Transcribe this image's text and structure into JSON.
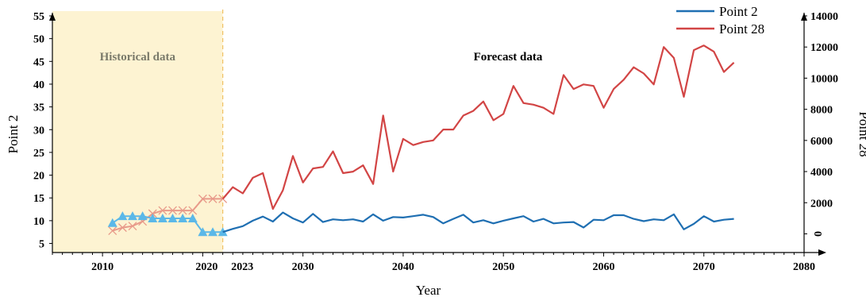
{
  "chart_data": {
    "type": "line",
    "xlabel": "Year",
    "ylabel_left": "Point 2",
    "ylabel_right": "Point 28",
    "xlim": [
      2005,
      2080
    ],
    "ylim_left": [
      3,
      55
    ],
    "ylim_right": [
      -1200,
      14000
    ],
    "x_ticks": [
      2010,
      2020,
      2023,
      2030,
      2040,
      2050,
      2060,
      2070,
      2080
    ],
    "x_tick_labels": [
      "2010",
      "2020",
      "2023",
      "2030",
      "2040",
      "2050",
      "2060",
      "2070",
      "2080"
    ],
    "y_left_ticks": [
      5,
      10,
      15,
      20,
      25,
      30,
      35,
      40,
      45,
      50,
      55
    ],
    "y_left_tick_labels": [
      "5",
      "10",
      "15",
      "20",
      "25",
      "30",
      "35",
      "40",
      "45",
      "50",
      "55"
    ],
    "y_right_ticks": [
      0,
      2000,
      4000,
      6000,
      8000,
      10000,
      12000,
      14000
    ],
    "y_right_tick_labels": [
      "0",
      "2000",
      "4000",
      "6000",
      "8000",
      "10000",
      "12000",
      "14000"
    ],
    "region_historical": {
      "label": "Historical data",
      "x_start": 2005,
      "x_end": 2022,
      "color": "#fdf3d2",
      "border_color": "#f0c060"
    },
    "region_forecast": {
      "label": "Forecast data"
    },
    "legend": {
      "position": "top-right",
      "entries": [
        "Point 2",
        "Point 28"
      ]
    },
    "colors": {
      "point2": "#1f6fb2",
      "point28": "#d24545",
      "hist_point2": "#5bb8e8",
      "hist_point28": "#e89a8a"
    },
    "historical": {
      "point2": {
        "name": "Point 2",
        "axis": "left",
        "x": [
          2011,
          2012,
          2013,
          2014,
          2015,
          2016,
          2017,
          2018,
          2019,
          2020,
          2021,
          2022
        ],
        "y": [
          9.5,
          11,
          11,
          11,
          10.5,
          10.5,
          10.5,
          10.5,
          10.5,
          7.5,
          7.5,
          7.5
        ]
      },
      "point28": {
        "name": "Point 28",
        "axis": "right",
        "x": [
          2011,
          2012,
          2013,
          2014,
          2015,
          2016,
          2017,
          2018,
          2019,
          2020,
          2021,
          2022
        ],
        "y": [
          200,
          400,
          500,
          800,
          1300,
          1500,
          1500,
          1500,
          1500,
          2250,
          2250,
          2250
        ]
      }
    },
    "series": [
      {
        "name": "Point 2",
        "axis": "left",
        "x": [
          2022,
          2023,
          2024,
          2025,
          2026,
          2027,
          2028,
          2029,
          2030,
          2031,
          2032,
          2033,
          2034,
          2035,
          2036,
          2037,
          2038,
          2039,
          2040,
          2041,
          2042,
          2043,
          2044,
          2045,
          2046,
          2047,
          2048,
          2049,
          2050,
          2051,
          2052,
          2053,
          2054,
          2055,
          2056,
          2057,
          2058,
          2059,
          2060,
          2061,
          2062,
          2063,
          2064,
          2065,
          2066,
          2067,
          2068,
          2069,
          2070,
          2071,
          2072,
          2073
        ],
        "y": [
          7.5,
          8.2,
          8.8,
          10.0,
          10.9,
          9.8,
          11.8,
          10.5,
          9.6,
          11.5,
          9.7,
          10.3,
          10.1,
          10.3,
          9.8,
          11.4,
          10.0,
          10.8,
          10.7,
          11.0,
          11.3,
          10.8,
          9.4,
          10.4,
          11.3,
          9.6,
          10.1,
          9.4,
          10.0,
          10.5,
          11.0,
          9.8,
          10.4,
          9.4,
          9.6,
          9.7,
          8.5,
          10.2,
          10.1,
          11.2,
          11.2,
          10.4,
          9.9,
          10.3,
          10.1,
          11.4,
          8.1,
          9.3,
          11.0,
          9.8,
          10.2,
          10.4
        ]
      },
      {
        "name": "Point 28",
        "axis": "right",
        "x": [
          2022,
          2023,
          2024,
          2025,
          2026,
          2027,
          2028,
          2029,
          2030,
          2031,
          2032,
          2033,
          2034,
          2035,
          2036,
          2037,
          2038,
          2039,
          2040,
          2041,
          2042,
          2043,
          2044,
          2045,
          2046,
          2047,
          2048,
          2049,
          2050,
          2051,
          2052,
          2053,
          2054,
          2055,
          2056,
          2057,
          2058,
          2059,
          2060,
          2061,
          2062,
          2063,
          2064,
          2065,
          2066,
          2067,
          2068,
          2069,
          2070,
          2071,
          2072,
          2073
        ],
        "y": [
          2250,
          3000,
          2600,
          3600,
          3900,
          1600,
          2800,
          5000,
          3300,
          4200,
          4300,
          5300,
          3900,
          4000,
          4400,
          3200,
          7600,
          4000,
          6100,
          5700,
          5900,
          6000,
          6700,
          6700,
          7600,
          7900,
          8500,
          7300,
          7700,
          9500,
          8400,
          8300,
          8100,
          7700,
          10200,
          9300,
          9600,
          9500,
          8100,
          9300,
          9900,
          10700,
          10300,
          9600,
          12000,
          11300,
          8800,
          11800,
          12100,
          11700,
          10400,
          11000
        ]
      }
    ]
  }
}
